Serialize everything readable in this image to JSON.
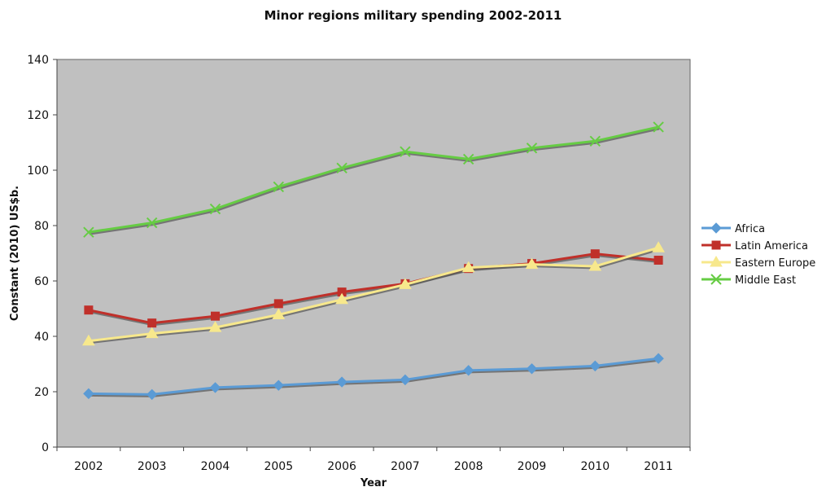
{
  "chart_data": {
    "type": "line",
    "title": "Minor regions military spending 2002-2011",
    "xlabel": "Year",
    "ylabel": "Constant (2010) US$b.",
    "categories": [
      "2002",
      "2003",
      "2004",
      "2005",
      "2006",
      "2007",
      "2008",
      "2009",
      "2010",
      "2011"
    ],
    "ylim": [
      0,
      140
    ],
    "yticks": [
      "0",
      "20",
      "40",
      "60",
      "80",
      "100",
      "120",
      "140"
    ],
    "grid": false,
    "legend_position": "right",
    "plot_background": "#c0c0c0",
    "series": [
      {
        "name": "Africa",
        "color": "#5b9bd5",
        "marker": "diamond",
        "values": [
          19.3,
          19.0,
          21.5,
          22.3,
          23.5,
          24.3,
          27.7,
          28.3,
          29.3,
          32.0
        ]
      },
      {
        "name": "Latin America",
        "color": "#c0302a",
        "marker": "square",
        "values": [
          49.5,
          44.8,
          47.3,
          51.8,
          56.0,
          59.0,
          64.5,
          66.3,
          69.8,
          67.5
        ]
      },
      {
        "name": "Eastern Europe",
        "color": "#f7e88c",
        "marker": "triangle",
        "values": [
          38.3,
          41.0,
          43.2,
          47.8,
          53.3,
          58.7,
          64.8,
          66.0,
          65.3,
          72.0
        ]
      },
      {
        "name": "Middle East",
        "color": "#66cc44",
        "marker": "x",
        "values": [
          77.6,
          81.0,
          86.0,
          94.0,
          100.8,
          106.7,
          104.0,
          108.0,
          110.5,
          115.6
        ]
      }
    ]
  }
}
